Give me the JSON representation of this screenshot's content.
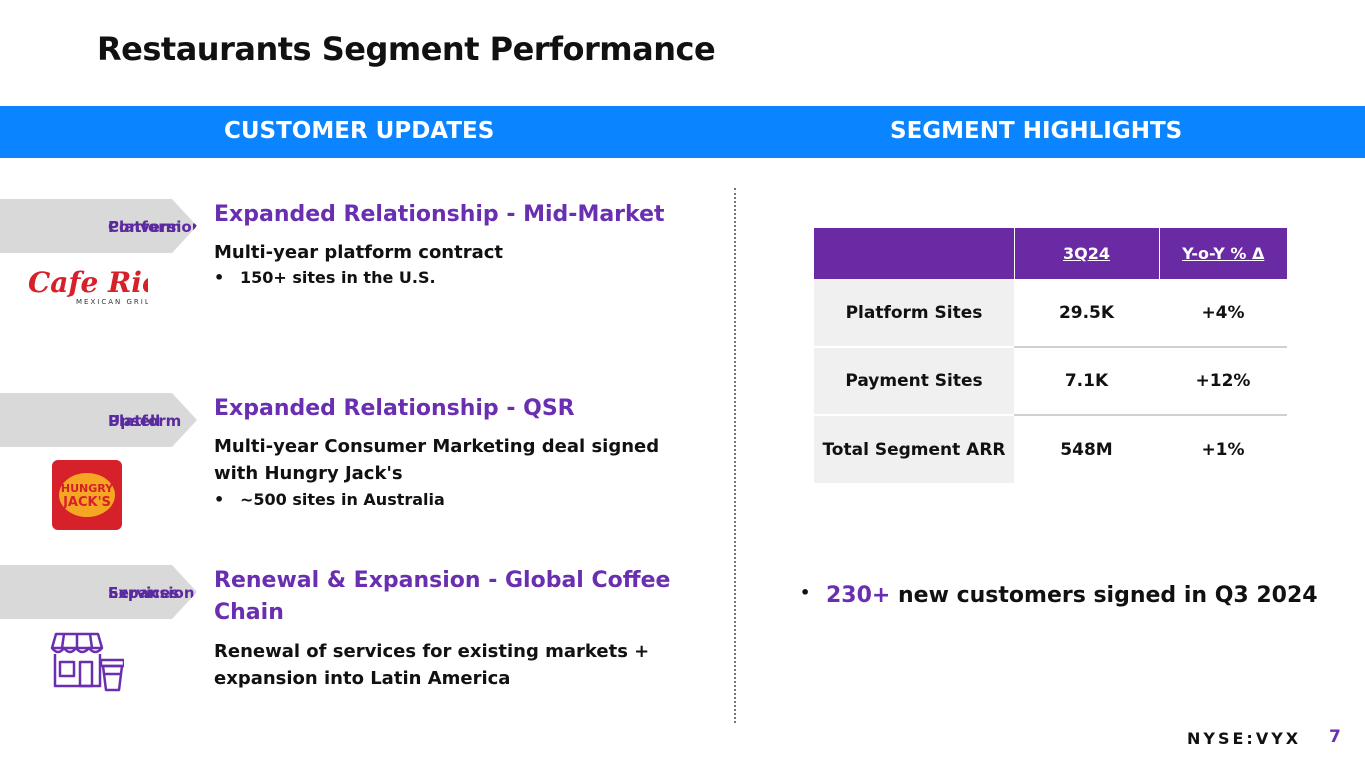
{
  "title": "Restaurants Segment Performance",
  "banner": {
    "left": "CUSTOMER UPDATES",
    "right": "SEGMENT HIGHLIGHTS"
  },
  "updates": [
    {
      "tag_line1": "Platform",
      "tag_line2": "Conversion",
      "heading": "Expanded Relationship - Mid-Market",
      "description": "Multi-year platform contract",
      "bullet": "150+ sites in the U.S.",
      "logo": {
        "name": "cafe-rio-logo",
        "text": "Cafe Rio",
        "subtext": "MEXICAN GRILL",
        "color": "#d6202a"
      }
    },
    {
      "tag_line1": "Platform",
      "tag_line2": "Upsell",
      "heading": "Expanded Relationship - QSR",
      "description_line1": "Multi-year Consumer Marketing deal signed",
      "description_line2": "with Hungry Jack's",
      "bullet": "~500 sites in Australia",
      "logo": {
        "name": "hungry-jacks-logo",
        "text_line1": "HUNGRY",
        "text_line2": "JACK'S",
        "color": "#d6202a"
      }
    },
    {
      "tag_line1": "Services",
      "tag_line2": "Expansion",
      "heading_line1": "Renewal & Expansion - Global Coffee",
      "heading_line2": "Chain",
      "description_line1": "Renewal of services for existing markets +",
      "description_line2": "expansion into Latin America",
      "icon": "storefront-coffee-icon"
    }
  ],
  "kpi_table": {
    "columns": [
      "",
      "3Q24",
      "Y-o-Y % Δ"
    ],
    "rows": [
      {
        "label": "Platform Sites",
        "value": "29.5K",
        "change": "+4%"
      },
      {
        "label": "Payment Sites",
        "value": "7.1K",
        "change": "+12%"
      },
      {
        "label": "Total Segment ARR",
        "value": "548M",
        "change": "+1%"
      }
    ]
  },
  "highlight": {
    "bullet": "•",
    "number": "230+",
    "text": " new customers signed in Q3 2024"
  },
  "footer": {
    "ticker": "NYSE:VYX",
    "page": "7"
  },
  "colors": {
    "accent_purple": "#6a2fb0",
    "banner_blue": "#0a84ff",
    "brand_red": "#d6202a"
  }
}
